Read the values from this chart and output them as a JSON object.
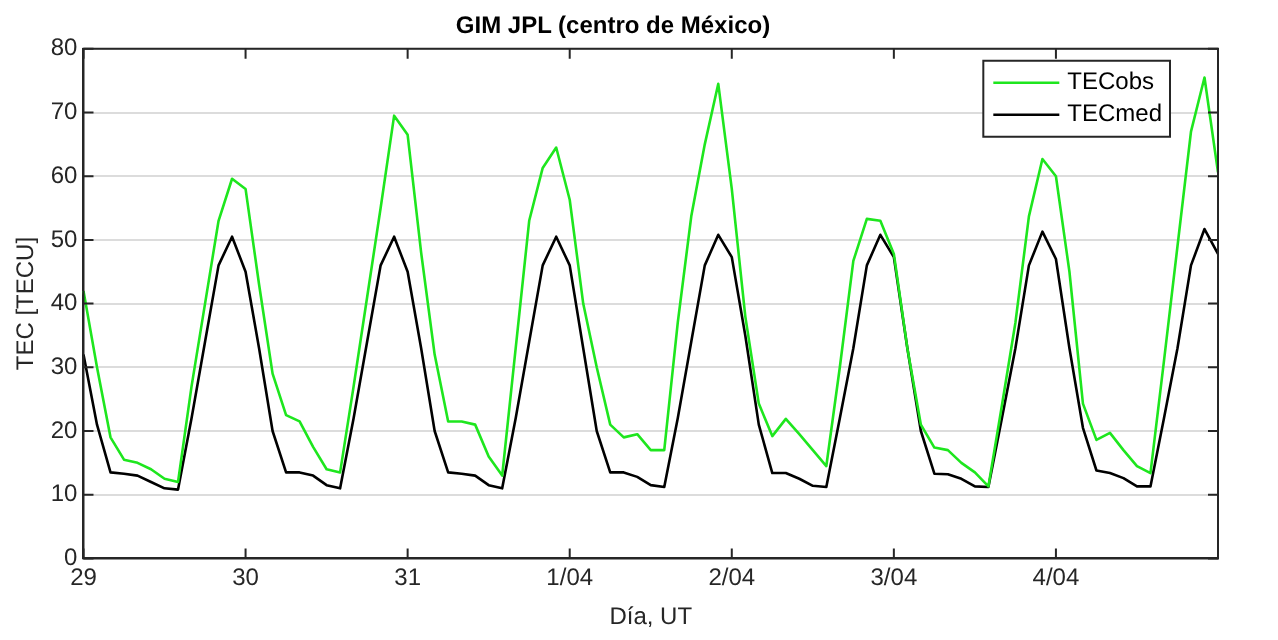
{
  "chart_data": {
    "type": "line",
    "title": "GIM JPL (centro de México)",
    "xlabel": "Día, UT",
    "ylabel": "TEC [TECU]",
    "categories": [
      "29",
      null,
      null,
      null,
      null,
      null,
      null,
      null,
      null,
      null,
      null,
      null,
      "30",
      null,
      null,
      null,
      null,
      null,
      null,
      null,
      null,
      null,
      null,
      null,
      "31",
      null,
      null,
      null,
      null,
      null,
      null,
      null,
      null,
      null,
      null,
      null,
      "1/04",
      null,
      null,
      null,
      null,
      null,
      null,
      null,
      null,
      null,
      null,
      null,
      "2/04",
      null,
      null,
      null,
      null,
      null,
      null,
      null,
      null,
      null,
      null,
      null,
      "3/04",
      null,
      null,
      null,
      null,
      null,
      null,
      null,
      null,
      null,
      null,
      null,
      "4/04",
      null,
      null,
      null,
      null,
      null,
      null,
      null,
      null,
      null,
      null,
      null,
      null
    ],
    "series": [
      {
        "name": "TECobs",
        "color": "#1ee61e",
        "values": [
          42,
          30,
          19,
          15.5,
          15,
          14,
          12.5,
          12,
          27,
          40,
          53,
          59.6,
          58,
          43,
          29,
          22.5,
          21.5,
          17.5,
          14,
          13.5,
          27,
          41,
          55,
          69.5,
          66.5,
          48,
          32,
          21.5,
          21.5,
          21,
          16,
          13,
          33,
          53,
          61.3,
          64.5,
          56.3,
          40,
          30,
          21,
          19,
          19.5,
          17,
          17,
          37,
          53.7,
          65,
          74.5,
          58,
          38,
          24.3,
          19.2,
          21.9,
          19.5,
          17,
          14.5,
          30,
          46.7,
          53.3,
          53,
          47.8,
          33,
          21,
          17.4,
          17,
          15,
          13.5,
          11.3,
          24,
          37,
          53.7,
          62.7,
          60,
          45,
          24.3,
          18.6,
          19.7,
          17,
          14.5,
          13.4,
          31,
          49,
          67,
          75.5,
          60.6
        ]
      },
      {
        "name": "TECmed",
        "color": "#000000",
        "values": [
          32,
          21,
          13.5,
          13.3,
          13,
          12,
          11,
          10.8,
          22,
          34,
          46,
          50.5,
          45,
          33,
          20,
          13.5,
          13.5,
          13,
          11.5,
          11,
          22,
          34,
          46,
          50.5,
          45,
          33,
          20,
          13.5,
          13.3,
          13,
          11.5,
          11,
          22,
          34,
          46,
          50.5,
          46,
          33,
          20,
          13.5,
          13.5,
          12.8,
          11.5,
          11.2,
          22,
          34,
          46,
          50.8,
          47.3,
          35,
          21,
          13.4,
          13.4,
          12.5,
          11.4,
          11.2,
          22,
          33,
          46,
          50.8,
          47.3,
          33,
          20,
          13.3,
          13.2,
          12.5,
          11.3,
          11.2,
          22,
          33,
          46,
          51.3,
          47,
          33,
          20.5,
          13.8,
          13.4,
          12.6,
          11.3,
          11.3,
          22,
          33,
          46,
          51.7,
          47.8
        ]
      }
    ],
    "ylim": [
      0,
      80
    ],
    "yticks": [
      0,
      10,
      20,
      30,
      40,
      50,
      60,
      70,
      80
    ],
    "grid": "y",
    "legend": "top right",
    "marker": "none",
    "line_style": "solid"
  }
}
